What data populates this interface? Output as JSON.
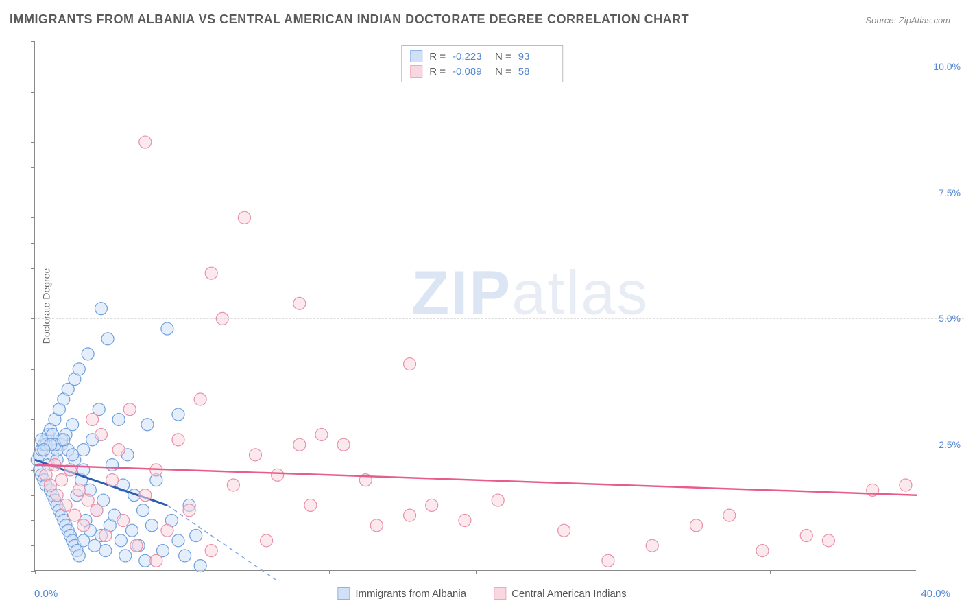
{
  "title": "IMMIGRANTS FROM ALBANIA VS CENTRAL AMERICAN INDIAN DOCTORATE DEGREE CORRELATION CHART",
  "source": "Source: ZipAtlas.com",
  "y_axis_label": "Doctorate Degree",
  "watermark_zip": "ZIP",
  "watermark_atlas": "atlas",
  "x_axis": {
    "min": 0,
    "max": 40,
    "label_min": "0.0%",
    "label_max": "40.0%",
    "ticks": [
      0,
      6.67,
      13.33,
      20,
      26.67,
      33.33,
      40
    ]
  },
  "y_axis": {
    "min": 0,
    "max": 10.5,
    "ticks": [
      2.5,
      5.0,
      7.5,
      10.0
    ],
    "tick_labels": [
      "2.5%",
      "5.0%",
      "7.5%",
      "10.0%"
    ],
    "minor_ticks": [
      0,
      0.5,
      1,
      1.5,
      2,
      2.5,
      3,
      3.5,
      4,
      4.5,
      5,
      5.5,
      6,
      6.5,
      7,
      7.5,
      8,
      8.5,
      9,
      9.5,
      10,
      10.5
    ]
  },
  "stats": [
    {
      "swatch_fill": "#cfe0f7",
      "swatch_border": "#8fb5e8",
      "r_label": "R =",
      "r_value": "-0.223",
      "n_label": "N =",
      "n_value": "93"
    },
    {
      "swatch_fill": "#f9d7e0",
      "swatch_border": "#f0a8bd",
      "r_label": "R =",
      "r_value": "-0.089",
      "n_label": "N =",
      "n_value": "58"
    }
  ],
  "legend": [
    {
      "label": "Immigrants from Albania",
      "fill": "#cfe0f7",
      "border": "#8fb5e8"
    },
    {
      "label": "Central American Indians",
      "fill": "#f9d7e0",
      "border": "#f0a8bd"
    }
  ],
  "series": [
    {
      "name": "albania",
      "fill": "#cfe0f7",
      "stroke": "#6f9fdd",
      "marker_r": 9,
      "fill_opacity": 0.55,
      "trend": {
        "x1": 0,
        "y1": 2.2,
        "x2": 6,
        "y2": 1.3,
        "color": "#2c5fb3",
        "width": 3,
        "dash_ext_x2": 11,
        "dash_ext_y2": -0.2,
        "dash_color": "#7fa6dd"
      },
      "points": [
        [
          0.1,
          2.2
        ],
        [
          0.2,
          2.3
        ],
        [
          0.2,
          2.0
        ],
        [
          0.3,
          2.4
        ],
        [
          0.3,
          1.9
        ],
        [
          0.4,
          2.5
        ],
        [
          0.4,
          1.8
        ],
        [
          0.5,
          2.6
        ],
        [
          0.5,
          1.7
        ],
        [
          0.6,
          2.1
        ],
        [
          0.6,
          2.7
        ],
        [
          0.7,
          1.6
        ],
        [
          0.7,
          2.8
        ],
        [
          0.8,
          1.5
        ],
        [
          0.8,
          2.3
        ],
        [
          0.9,
          3.0
        ],
        [
          0.9,
          1.4
        ],
        [
          1.0,
          2.2
        ],
        [
          1.0,
          1.3
        ],
        [
          1.1,
          3.2
        ],
        [
          1.1,
          1.2
        ],
        [
          1.2,
          2.5
        ],
        [
          1.2,
          1.1
        ],
        [
          1.3,
          1.0
        ],
        [
          1.3,
          3.4
        ],
        [
          1.4,
          0.9
        ],
        [
          1.4,
          2.7
        ],
        [
          1.5,
          0.8
        ],
        [
          1.5,
          3.6
        ],
        [
          1.6,
          0.7
        ],
        [
          1.6,
          2.0
        ],
        [
          1.7,
          0.6
        ],
        [
          1.7,
          2.9
        ],
        [
          1.8,
          0.5
        ],
        [
          1.8,
          3.8
        ],
        [
          1.9,
          0.4
        ],
        [
          1.9,
          1.5
        ],
        [
          2.0,
          0.3
        ],
        [
          2.0,
          4.0
        ],
        [
          2.1,
          1.8
        ],
        [
          2.2,
          0.6
        ],
        [
          2.2,
          2.4
        ],
        [
          2.3,
          1.0
        ],
        [
          2.4,
          4.3
        ],
        [
          2.5,
          0.8
        ],
        [
          2.5,
          1.6
        ],
        [
          2.6,
          2.6
        ],
        [
          2.7,
          0.5
        ],
        [
          2.8,
          1.2
        ],
        [
          2.9,
          3.2
        ],
        [
          3.0,
          0.7
        ],
        [
          3.0,
          5.2
        ],
        [
          3.1,
          1.4
        ],
        [
          3.2,
          0.4
        ],
        [
          3.3,
          4.6
        ],
        [
          3.4,
          0.9
        ],
        [
          3.5,
          2.1
        ],
        [
          3.6,
          1.1
        ],
        [
          3.8,
          3.0
        ],
        [
          3.9,
          0.6
        ],
        [
          4.0,
          1.7
        ],
        [
          4.1,
          0.3
        ],
        [
          4.2,
          2.3
        ],
        [
          4.4,
          0.8
        ],
        [
          4.5,
          1.5
        ],
        [
          4.7,
          0.5
        ],
        [
          4.9,
          1.2
        ],
        [
          5.0,
          0.2
        ],
        [
          5.1,
          2.9
        ],
        [
          5.3,
          0.9
        ],
        [
          5.5,
          1.8
        ],
        [
          5.8,
          0.4
        ],
        [
          6.0,
          4.8
        ],
        [
          6.2,
          1.0
        ],
        [
          6.5,
          0.6
        ],
        [
          6.5,
          3.1
        ],
        [
          6.8,
          0.3
        ],
        [
          7.0,
          1.3
        ],
        [
          7.3,
          0.7
        ],
        [
          7.5,
          0.1
        ],
        [
          1.0,
          2.4
        ],
        [
          1.2,
          2.6
        ],
        [
          0.5,
          2.5
        ],
        [
          0.8,
          2.7
        ],
        [
          1.5,
          2.4
        ],
        [
          0.3,
          2.6
        ],
        [
          0.9,
          2.5
        ],
        [
          1.8,
          2.2
        ],
        [
          2.2,
          2.0
        ],
        [
          0.7,
          2.5
        ],
        [
          1.3,
          2.6
        ],
        [
          1.7,
          2.3
        ],
        [
          0.4,
          2.4
        ]
      ]
    },
    {
      "name": "central_american",
      "fill": "#f9d7e0",
      "stroke": "#e88fa9",
      "marker_r": 9,
      "fill_opacity": 0.55,
      "trend": {
        "x1": 0,
        "y1": 2.1,
        "x2": 40,
        "y2": 1.5,
        "color": "#e85c8a",
        "width": 2.5
      },
      "points": [
        [
          0.5,
          1.9
        ],
        [
          0.7,
          1.7
        ],
        [
          0.9,
          2.1
        ],
        [
          1.0,
          1.5
        ],
        [
          1.2,
          1.8
        ],
        [
          1.4,
          1.3
        ],
        [
          1.6,
          2.0
        ],
        [
          1.8,
          1.1
        ],
        [
          2.0,
          1.6
        ],
        [
          2.2,
          0.9
        ],
        [
          2.4,
          1.4
        ],
        [
          2.6,
          3.0
        ],
        [
          2.8,
          1.2
        ],
        [
          3.0,
          2.7
        ],
        [
          3.2,
          0.7
        ],
        [
          3.5,
          1.8
        ],
        [
          3.8,
          2.4
        ],
        [
          4.0,
          1.0
        ],
        [
          4.3,
          3.2
        ],
        [
          4.6,
          0.5
        ],
        [
          5.0,
          1.5
        ],
        [
          5.0,
          8.5
        ],
        [
          5.5,
          2.0
        ],
        [
          6.0,
          0.8
        ],
        [
          6.5,
          2.6
        ],
        [
          7.0,
          1.2
        ],
        [
          7.5,
          3.4
        ],
        [
          8.0,
          0.4
        ],
        [
          8.0,
          5.9
        ],
        [
          8.5,
          5.0
        ],
        [
          9.0,
          1.7
        ],
        [
          9.5,
          7.0
        ],
        [
          10.0,
          2.3
        ],
        [
          10.5,
          0.6
        ],
        [
          11.0,
          1.9
        ],
        [
          12.0,
          2.5
        ],
        [
          12.0,
          5.3
        ],
        [
          12.5,
          1.3
        ],
        [
          13.0,
          2.7
        ],
        [
          14.0,
          2.5
        ],
        [
          15.0,
          1.8
        ],
        [
          15.5,
          0.9
        ],
        [
          17.0,
          1.1
        ],
        [
          17.0,
          4.1
        ],
        [
          18.0,
          1.3
        ],
        [
          19.5,
          1.0
        ],
        [
          21.0,
          1.4
        ],
        [
          24.0,
          0.8
        ],
        [
          26.0,
          0.2
        ],
        [
          28.0,
          0.5
        ],
        [
          30.0,
          0.9
        ],
        [
          31.5,
          1.1
        ],
        [
          33.0,
          0.4
        ],
        [
          35.0,
          0.7
        ],
        [
          36.0,
          0.6
        ],
        [
          38.0,
          1.6
        ],
        [
          39.5,
          1.7
        ],
        [
          5.5,
          0.2
        ]
      ]
    }
  ],
  "colors": {
    "title": "#5a5a5a",
    "axis_text": "#5487d4",
    "grid": "#dddddd",
    "background": "#ffffff"
  }
}
